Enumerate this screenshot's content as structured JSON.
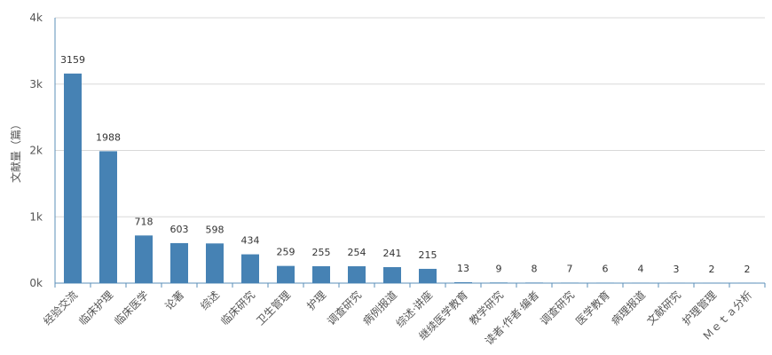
{
  "chart_data": {
    "type": "bar",
    "ylabel": "文献量（篇）",
    "ylim": [
      0,
      4000
    ],
    "yticks": [
      {
        "value": 0,
        "label": "0k"
      },
      {
        "value": 1000,
        "label": "1k"
      },
      {
        "value": 2000,
        "label": "2k"
      },
      {
        "value": 3000,
        "label": "3k"
      },
      {
        "value": 4000,
        "label": "4k"
      }
    ],
    "grid": true,
    "bar_color": "#4682b4",
    "categories": [
      "经验交流",
      "临床护理",
      "临床医学",
      "论著",
      "综述",
      "临床研究",
      "卫生管理",
      "护理",
      "调查研究",
      "病例报道",
      "综述·讲座",
      "继续医学教育",
      "教学研究",
      "读者·作者·编者",
      "调查研究",
      "医学教育",
      "病理报道",
      "文献研究",
      "护理管理",
      "Ｍｅｔａ分析"
    ],
    "values": [
      3159,
      1988,
      718,
      603,
      598,
      434,
      259,
      255,
      254,
      241,
      215,
      13,
      9,
      8,
      7,
      6,
      4,
      3,
      2,
      2
    ]
  }
}
